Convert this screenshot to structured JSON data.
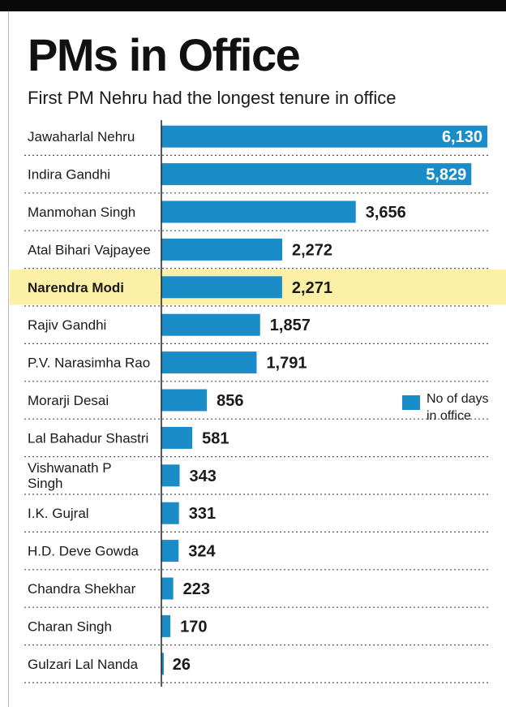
{
  "title": "PMs in Office",
  "subtitle": "First PM Nehru had the longest tenure in office",
  "colors": {
    "bar": "#1a8cc8",
    "highlight": "#fbf0a5",
    "text": "#1a1a1a",
    "gridline": "#555555"
  },
  "legend": {
    "label": "No of days in office",
    "position": "right"
  },
  "chart_data": {
    "type": "bar",
    "orientation": "horizontal",
    "title": "PMs in Office",
    "subtitle": "First PM Nehru had the longest tenure in office",
    "series_name": "No of days in office",
    "categories": [
      "Jawaharlal Nehru",
      "Indira Gandhi",
      "Manmohan Singh",
      "Atal Bihari Vajpayee",
      "Narendra Modi",
      "Rajiv Gandhi",
      "P.V. Narasimha Rao",
      "Morarji Desai",
      "Lal Bahadur Shastri",
      "Vishwanath P Singh",
      "I.K. Gujral",
      "H.D. Deve Gowda",
      "Chandra Shekhar",
      "Charan Singh",
      "Gulzari Lal Nanda"
    ],
    "values": [
      6130,
      5829,
      3656,
      2272,
      2271,
      1857,
      1791,
      856,
      581,
      343,
      331,
      324,
      223,
      170,
      26
    ],
    "value_labels": [
      "6,130",
      "5,829",
      "3,656",
      "2,272",
      "2,271",
      "1,857",
      "1,791",
      "856",
      "581",
      "343",
      "331",
      "324",
      "223",
      "170",
      "26"
    ],
    "highlighted": "Narendra Modi",
    "grid": false,
    "row_separators": "dotted",
    "legend_placement": "right"
  }
}
